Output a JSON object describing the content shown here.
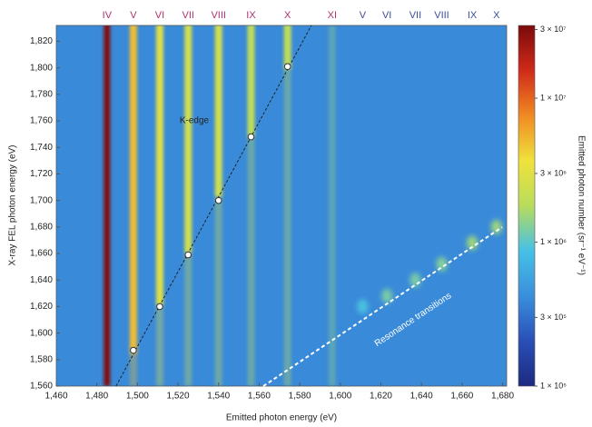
{
  "chart_data": {
    "type": "heatmap",
    "xlabel": "Emitted photon energy (eV)",
    "ylabel": "X-ray FEL photon energy (eV)",
    "colorbar_label": "Emitted photon number (sr⁻¹ eV⁻¹)",
    "xlim": [
      1460,
      1682
    ],
    "ylim": [
      1560,
      1832
    ],
    "zlim": [
      100000,
      32000000
    ],
    "zscale": "log",
    "colormap": [
      "#1b2a7f",
      "#2a4fb8",
      "#3a8fdc",
      "#46c0e6",
      "#b8dc5c",
      "#f0e23c",
      "#f08a22",
      "#d02a1a",
      "#7a0a0a"
    ],
    "background_level": 400000,
    "xticks": [
      {
        "value": 1460,
        "label": "1,460"
      },
      {
        "value": 1480,
        "label": "1,480"
      },
      {
        "value": 1500,
        "label": "1,500"
      },
      {
        "value": 1520,
        "label": "1,520"
      },
      {
        "value": 1540,
        "label": "1,540"
      },
      {
        "value": 1560,
        "label": "1,560"
      },
      {
        "value": 1580,
        "label": "1,580"
      },
      {
        "value": 1600,
        "label": "1,600"
      },
      {
        "value": 1620,
        "label": "1,620"
      },
      {
        "value": 1640,
        "label": "1,640"
      },
      {
        "value": 1660,
        "label": "1,660"
      },
      {
        "value": 1680,
        "label": "1,680"
      }
    ],
    "yticks": [
      {
        "value": 1560,
        "label": "1,560"
      },
      {
        "value": 1580,
        "label": "1,580"
      },
      {
        "value": 1600,
        "label": "1,600"
      },
      {
        "value": 1620,
        "label": "1,620"
      },
      {
        "value": 1640,
        "label": "1,640"
      },
      {
        "value": 1660,
        "label": "1,660"
      },
      {
        "value": 1680,
        "label": "1,680"
      },
      {
        "value": 1700,
        "label": "1,700"
      },
      {
        "value": 1720,
        "label": "1,720"
      },
      {
        "value": 1740,
        "label": "1,740"
      },
      {
        "value": 1760,
        "label": "1,760"
      },
      {
        "value": 1780,
        "label": "1,780"
      },
      {
        "value": 1800,
        "label": "1,800"
      },
      {
        "value": 1820,
        "label": "1,820"
      }
    ],
    "zticks": [
      {
        "value": 100000,
        "label": "1 × 10⁵"
      },
      {
        "value": 300000,
        "label": "3 × 10⁵"
      },
      {
        "value": 1000000,
        "label": "1 × 10⁶"
      },
      {
        "value": 3000000,
        "label": "3 × 10⁶"
      },
      {
        "value": 10000000,
        "label": "1 × 10⁷"
      },
      {
        "value": 30000000,
        "label": "3 × 10⁷"
      }
    ],
    "lines": [
      {
        "color": "#b0306e",
        "labels": [
          "IV",
          "V",
          "VI",
          "VII",
          "VIII",
          "IX",
          "X",
          "XI"
        ],
        "x": [
          1485,
          1498,
          1511,
          1525,
          1540,
          1556,
          1574,
          1596
        ],
        "values": [
          30000000,
          5000000,
          3000000,
          2500000,
          2500000,
          2000000,
          2000000,
          1500000
        ]
      },
      {
        "color": "#3c4c9c",
        "labels": [
          "V",
          "VI",
          "VII",
          "VIII",
          "IX",
          "X"
        ],
        "x": [
          1611,
          1623,
          1637,
          1650,
          1665,
          1677
        ],
        "y": [
          1620,
          1628,
          1640,
          1652,
          1668,
          1680
        ],
        "values": [
          900000,
          1200000,
          1200000,
          1300000,
          1500000,
          1500000
        ]
      }
    ],
    "k_edge": {
      "label": "K-edge",
      "x": [
        1498,
        1511,
        1525,
        1540,
        1556,
        1574
      ],
      "y": [
        1587,
        1620,
        1659,
        1700,
        1748,
        1801
      ]
    },
    "resonance_label": "Resonance transitions"
  }
}
